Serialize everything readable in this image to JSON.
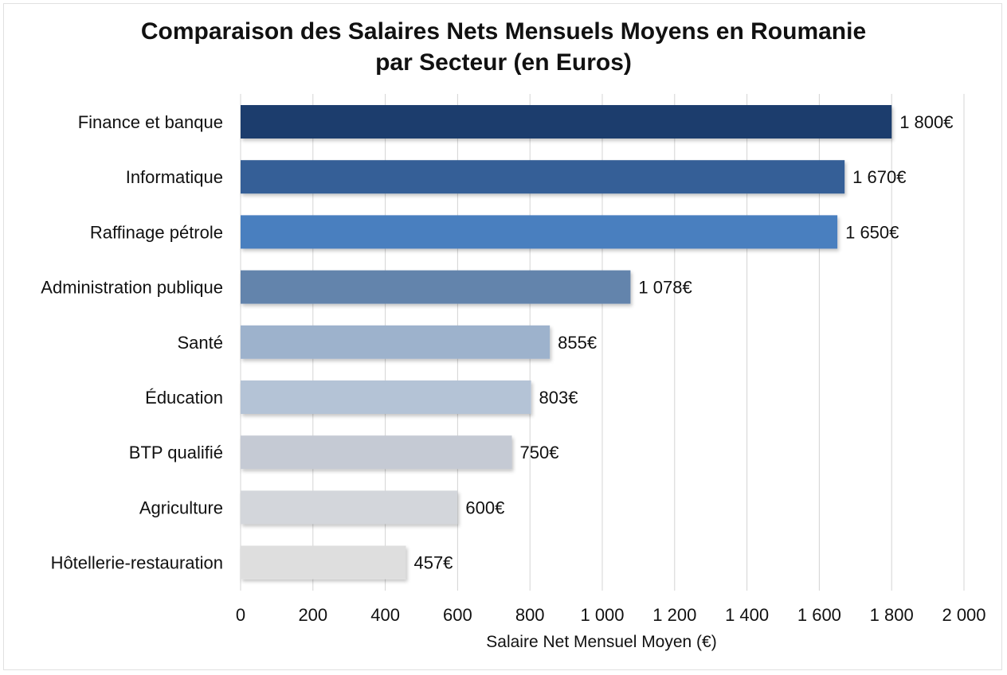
{
  "chart_data": {
    "type": "bar",
    "orientation": "horizontal",
    "title_line1": "Comparaison des Salaires Nets Mensuels Moyens en Roumanie",
    "title_line2": "par Secteur (en Euros)",
    "xlabel": "Salaire Net Mensuel Moyen (€)",
    "ylabel": "",
    "xlim": [
      0,
      2000
    ],
    "xticks": [
      0,
      200,
      400,
      600,
      800,
      1000,
      1200,
      1400,
      1600,
      1800,
      2000
    ],
    "xtick_labels": [
      "0",
      "200",
      "400",
      "600",
      "800",
      "1 000",
      "1 200",
      "1 400",
      "1 600",
      "1 800",
      "2 000"
    ],
    "grid": "vertical",
    "categories": [
      "Finance et banque",
      "Informatique",
      "Raffinage pétrole",
      "Administration publique",
      "Santé",
      "Éducation",
      "BTP qualifié",
      "Agriculture",
      "Hôtellerie-restauration"
    ],
    "values": [
      1800,
      1670,
      1650,
      1078,
      855,
      803,
      750,
      600,
      457
    ],
    "value_labels": [
      "1 800€",
      "1 670€",
      "1 650€",
      "1 078€",
      "855€",
      "803€",
      "750€",
      "600€",
      "457€"
    ],
    "colors": [
      "#1f3d6d",
      "#345f97",
      "#4a7fbf",
      "#6384ac",
      "#9db2cc",
      "#b4c3d6",
      "#c5cad4",
      "#d3d6db",
      "#dedede"
    ]
  }
}
